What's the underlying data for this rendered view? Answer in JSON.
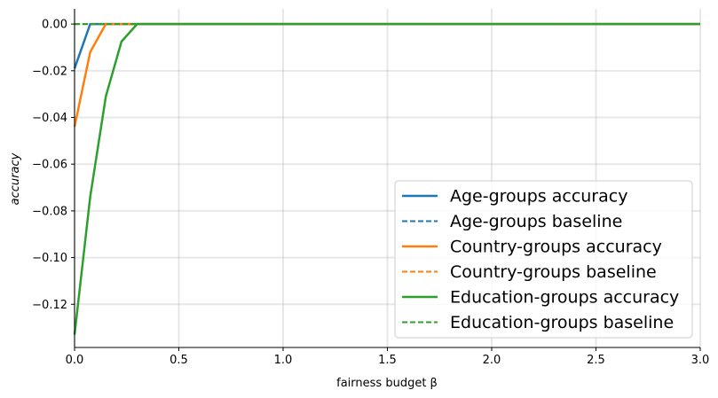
{
  "chart_data": {
    "type": "line",
    "xlabel": "fairness budget β",
    "ylabel": "accuracy",
    "xlim": [
      0,
      3.0
    ],
    "ylim": [
      -0.1385,
      0.0065
    ],
    "xticks": [
      0.0,
      0.5,
      1.0,
      1.5,
      2.0,
      2.5,
      3.0
    ],
    "xtick_labels": [
      "0.0",
      "0.5",
      "1.0",
      "1.5",
      "2.0",
      "2.5",
      "3.0"
    ],
    "yticks": [
      0.0,
      -0.02,
      -0.04,
      -0.06,
      -0.08,
      -0.1,
      -0.12
    ],
    "ytick_labels": [
      "0.00",
      "−0.02",
      "−0.04",
      "−0.06",
      "−0.08",
      "−0.10",
      "−0.12"
    ],
    "grid": true,
    "legend_position": "lower-right",
    "series": [
      {
        "name": "Age-groups accuracy",
        "color": "#1f77b4",
        "style": "solid",
        "x": [
          0.0,
          0.075,
          3.0
        ],
        "y": [
          -0.019,
          0.0,
          0.0
        ]
      },
      {
        "name": "Age-groups baseline",
        "color": "#1f77b4",
        "style": "dashed",
        "x": [
          0.0,
          3.0
        ],
        "y": [
          0.0,
          0.0
        ]
      },
      {
        "name": "Country-groups accuracy",
        "color": "#ff7f0e",
        "style": "solid",
        "x": [
          0.0,
          0.075,
          0.15,
          3.0
        ],
        "y": [
          -0.044,
          -0.012,
          0.0,
          0.0
        ]
      },
      {
        "name": "Country-groups baseline",
        "color": "#ff7f0e",
        "style": "dashed",
        "x": [
          0.0,
          3.0
        ],
        "y": [
          0.0,
          0.0
        ]
      },
      {
        "name": "Education-groups accuracy",
        "color": "#2ca02c",
        "style": "solid",
        "x": [
          0.0,
          0.075,
          0.15,
          0.225,
          0.3,
          3.0
        ],
        "y": [
          -0.133,
          -0.074,
          -0.031,
          -0.0075,
          0.0,
          0.0
        ]
      },
      {
        "name": "Education-groups baseline",
        "color": "#2ca02c",
        "style": "dashed",
        "x": [
          0.0,
          3.0
        ],
        "y": [
          0.0,
          0.0
        ]
      }
    ]
  }
}
